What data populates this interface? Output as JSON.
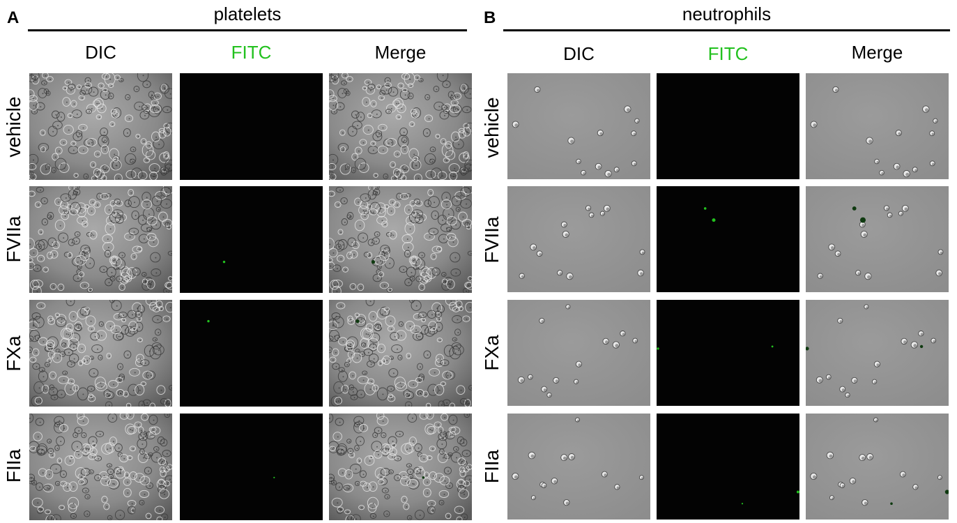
{
  "colors": {
    "fitc_green": "#22c11e",
    "dark_field": "#030303"
  },
  "panels": [
    {
      "letter": "A",
      "title": "platelets",
      "cell_type": "platelets",
      "columns": [
        {
          "label": "DIC",
          "color": "#000000"
        },
        {
          "label": "FITC",
          "color": "#22c11e"
        },
        {
          "label": "Merge",
          "color": "#000000"
        }
      ],
      "rows": [
        "vehicle",
        "FVIIa",
        "FXa",
        "FIIa"
      ]
    },
    {
      "letter": "B",
      "title": "neutrophils",
      "cell_type": "neutrophils",
      "columns": [
        {
          "label": "DIC",
          "color": "#000000"
        },
        {
          "label": "FITC",
          "color": "#22c11e"
        },
        {
          "label": "Merge",
          "color": "#000000"
        }
      ],
      "rows": [
        "vehicle",
        "FVIIa",
        "FXa",
        "FIIa"
      ]
    }
  ]
}
